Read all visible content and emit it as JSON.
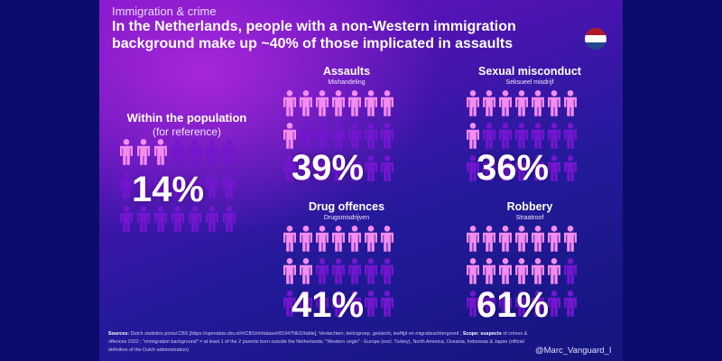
{
  "header": {
    "kicker": "Immigration & crime",
    "title_line1": "In the Netherlands, people with a non-Western immigration",
    "title_line2": "background make up ~40% of those implicated in assaults"
  },
  "colors": {
    "highlight": "#f58cf0",
    "base": "#7316cf",
    "flag_red": "#ae1c28",
    "flag_white": "#ffffff",
    "flag_blue": "#21468b"
  },
  "icons": {
    "figure": "person-icon",
    "flag": "netherlands-flag-icon"
  },
  "chart_data": [
    {
      "type": "pictogram",
      "title": "Within the population",
      "subtitle": "(for reference)",
      "value_label": "14%",
      "percent": 14,
      "grid": [
        3,
        7
      ]
    },
    {
      "type": "pictogram",
      "title": "Assaults",
      "subtitle": "Mishandeling",
      "value_label": "39%",
      "percent": 39,
      "grid": [
        3,
        7
      ]
    },
    {
      "type": "pictogram",
      "title": "Sexual misconduct",
      "subtitle": "Seksueel misdrijf",
      "value_label": "36%",
      "percent": 36,
      "grid": [
        3,
        7
      ]
    },
    {
      "type": "pictogram",
      "title": "Drug offences",
      "subtitle": "Drugsmisdrijven",
      "value_label": "41%",
      "percent": 41,
      "grid": [
        3,
        7
      ]
    },
    {
      "type": "pictogram",
      "title": "Robbery",
      "subtitle": "Straatroof",
      "value_label": "61%",
      "percent": 61,
      "grid": [
        3,
        7
      ]
    }
  ],
  "footer": {
    "sources_label": "Sources:",
    "sources_text": "Dutch statistics portal CBS [https://opendata.cbs.nl/#/CBS/nl/dataset/81947NED/table], Verdachten; delictgroep, geslacht, leeftijd en migratieachtergrond ;",
    "scope_label": "Scope: suspects",
    "scope_text": "of crimes & offences 2022 ; \"immigration background\" = at least 1 of the 2 parents born outside the Netherlands; \"Western origin\" : Europe (excl. Turkey), North America, Oceania, Indonesia & Japan (official definition of the Dutch administration)",
    "handle": "@Marc_Vanguard_I"
  }
}
